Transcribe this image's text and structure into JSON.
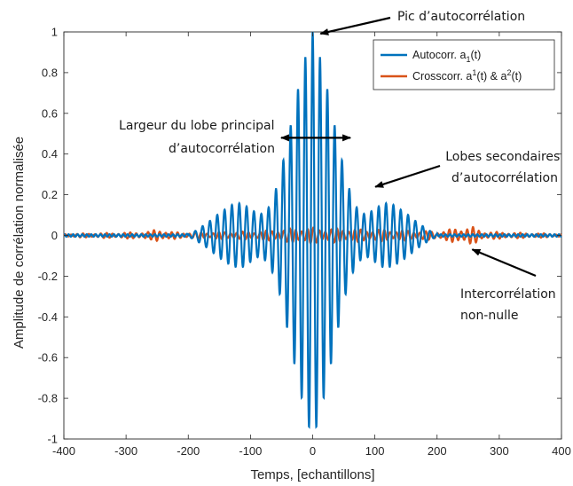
{
  "chart_data": {
    "type": "line",
    "xlabel": "Temps, [echantillons]",
    "ylabel": "Amplitude de corrélation normalisée",
    "xlim": [
      -400,
      400
    ],
    "ylim": [
      -1,
      1
    ],
    "xticks": [
      -400,
      -300,
      -200,
      -100,
      0,
      100,
      200,
      300,
      400
    ],
    "xtick_labels": [
      "-400",
      "-300",
      "-200",
      "-100",
      "0",
      "100",
      "200",
      "300",
      "400"
    ],
    "yticks": [
      1,
      0.8,
      0.6,
      0.4,
      0.2,
      0,
      -0.2,
      -0.4,
      -0.6,
      -0.8,
      -1
    ],
    "ytick_labels": [
      "1",
      "0.8",
      "0.6",
      "0.4",
      "0.2",
      "0",
      "-0.2",
      "-0.4",
      "-0.6",
      "-0.8",
      "-1"
    ],
    "grid": false,
    "legend_position": "top-right",
    "series": [
      {
        "name": "Autocorr. a1(t)",
        "legend_main": "Autocorr. a",
        "legend_sub": "1",
        "legend_end": "(t)",
        "color": "#0072BD",
        "peak": {
          "x": 0,
          "y": 1
        },
        "trough_values": [
          -0.91,
          -0.91
        ],
        "envelope": [
          [
            -400,
            0.0
          ],
          [
            -205,
            0.0
          ],
          [
            -190,
            0.02
          ],
          [
            -170,
            0.06
          ],
          [
            -150,
            0.11
          ],
          [
            -130,
            0.15
          ],
          [
            -115,
            0.16
          ],
          [
            -100,
            0.13
          ],
          [
            -85,
            0.1
          ],
          [
            -70,
            0.14
          ],
          [
            -55,
            0.26
          ],
          [
            -40,
            0.47
          ],
          [
            -25,
            0.7
          ],
          [
            -10,
            0.9
          ],
          [
            0,
            1.0
          ],
          [
            10,
            0.9
          ],
          [
            25,
            0.7
          ],
          [
            40,
            0.47
          ],
          [
            55,
            0.26
          ],
          [
            70,
            0.14
          ],
          [
            85,
            0.1
          ],
          [
            100,
            0.13
          ],
          [
            115,
            0.16
          ],
          [
            130,
            0.15
          ],
          [
            150,
            0.11
          ],
          [
            170,
            0.06
          ],
          [
            190,
            0.02
          ],
          [
            205,
            0.0
          ],
          [
            400,
            0.0
          ]
        ]
      },
      {
        "name": "Crosscorr. a1(t) & a2(t)",
        "legend_main": "Crosscorr. a",
        "legend_sup1": "1",
        "legend_mid": "(t) & a",
        "legend_sup2": "2",
        "legend_end": "(t)",
        "color": "#D95319",
        "envelope": [
          [
            -400,
            0.008
          ],
          [
            -300,
            0.015
          ],
          [
            -260,
            0.02
          ],
          [
            -250,
            0.035
          ],
          [
            -230,
            0.018
          ],
          [
            -200,
            0.015
          ],
          [
            -150,
            0.018
          ],
          [
            -100,
            0.02
          ],
          [
            -50,
            0.03
          ],
          [
            -20,
            0.04
          ],
          [
            0,
            0.04
          ],
          [
            20,
            0.035
          ],
          [
            50,
            0.035
          ],
          [
            80,
            0.03
          ],
          [
            110,
            0.03
          ],
          [
            150,
            0.025
          ],
          [
            200,
            0.02
          ],
          [
            230,
            0.035
          ],
          [
            255,
            0.045
          ],
          [
            275,
            0.02
          ],
          [
            320,
            0.015
          ],
          [
            400,
            0.008
          ]
        ]
      }
    ],
    "annotations": [
      {
        "id": "pic",
        "lines": [
          "Pic d’autocorrélation"
        ],
        "target": {
          "x": 4,
          "y": 1.0
        }
      },
      {
        "id": "largeur",
        "lines": [
          "Largeur du lobe principal",
          "d’autocorrélation"
        ],
        "span": [
          -45,
          55
        ],
        "y": 0.48
      },
      {
        "id": "lobes",
        "lines": [
          "Lobes secondaires",
          "d’autocorrélation"
        ],
        "target": {
          "x": 95,
          "y": 0.23
        }
      },
      {
        "id": "inter",
        "lines": [
          "Intercorrélation",
          "non-nulle"
        ],
        "target": {
          "x": 248,
          "y": -0.06
        }
      }
    ]
  }
}
